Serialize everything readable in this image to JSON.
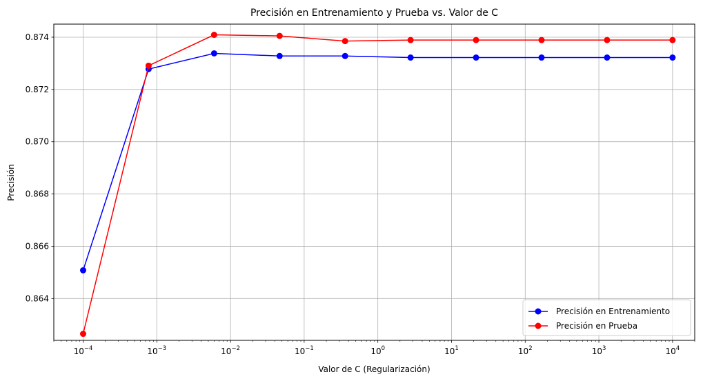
{
  "chart_data": {
    "type": "line",
    "title": "Precisión en Entrenamiento y Prueba vs. Valor de C",
    "xlabel": "Valor de C (Regularización)",
    "ylabel": "Precisión",
    "xscale": "log",
    "xlim": [
      4e-05,
      20000
    ],
    "ylim": [
      0.8624,
      0.8745
    ],
    "grid": true,
    "legend_position": "lower-right",
    "x": [
      0.0001,
      0.000774,
      0.005995,
      0.04642,
      0.3594,
      2.783,
      21.54,
      166.8,
      1292,
      10000
    ],
    "x_ticks": [
      {
        "value": 0.0001,
        "base": "10",
        "exp": "−4"
      },
      {
        "value": 0.001,
        "base": "10",
        "exp": "−3"
      },
      {
        "value": 0.01,
        "base": "10",
        "exp": "−2"
      },
      {
        "value": 0.1,
        "base": "10",
        "exp": "−1"
      },
      {
        "value": 1,
        "base": "10",
        "exp": "0"
      },
      {
        "value": 10,
        "base": "10",
        "exp": "1"
      },
      {
        "value": 100,
        "base": "10",
        "exp": "2"
      },
      {
        "value": 1000,
        "base": "10",
        "exp": "3"
      },
      {
        "value": 10000,
        "base": "10",
        "exp": "4"
      }
    ],
    "y_ticks": [
      {
        "value": 0.864,
        "label": "0.864"
      },
      {
        "value": 0.866,
        "label": "0.866"
      },
      {
        "value": 0.868,
        "label": "0.868"
      },
      {
        "value": 0.87,
        "label": "0.870"
      },
      {
        "value": 0.872,
        "label": "0.872"
      },
      {
        "value": 0.874,
        "label": "0.874"
      }
    ],
    "series": [
      {
        "name": "Precisión en Entrenamiento",
        "color": "#0000ff",
        "marker": "circle",
        "values": [
          0.86508,
          0.87278,
          0.87338,
          0.87328,
          0.87328,
          0.87322,
          0.87322,
          0.87322,
          0.87322,
          0.87322
        ]
      },
      {
        "name": "Precisión en Prueba",
        "color": "#ff0000",
        "marker": "circle",
        "values": [
          0.86265,
          0.87291,
          0.87409,
          0.87405,
          0.87385,
          0.87389,
          0.87389,
          0.87389,
          0.87389,
          0.87389
        ]
      }
    ]
  }
}
